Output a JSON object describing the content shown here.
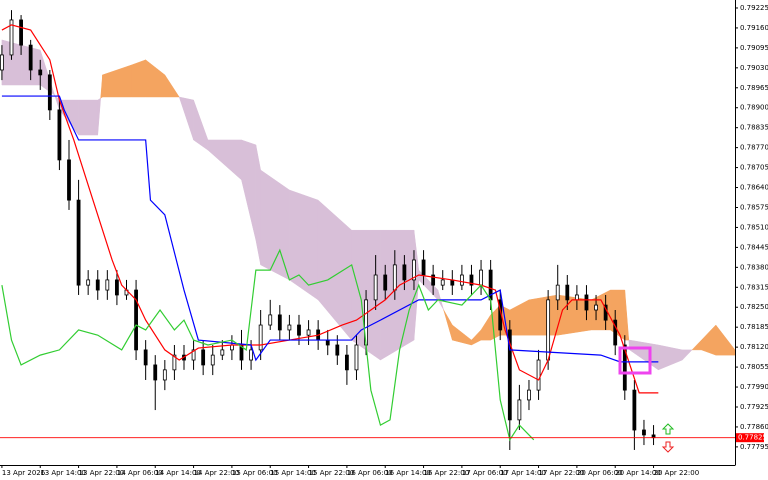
{
  "chart_data": {
    "type": "candlestick",
    "xlim": [
      -0.4,
      153
    ],
    "ylim": [
      0.77736,
      0.79251
    ],
    "yticks": [
      0.79225,
      {
        "value": 0.7916,
        "label": "0.79160"
      },
      0.79095,
      {
        "value": 0.7903,
        "label": "0.79030"
      },
      0.78965,
      {
        "value": 0.789,
        "label": "0.78900"
      },
      0.78835,
      {
        "value": 0.7877,
        "label": "0.78770"
      },
      0.78705,
      {
        "value": 0.7864,
        "label": "0.78640"
      },
      0.78575,
      {
        "value": 0.7851,
        "label": "0.78510"
      },
      0.78445,
      {
        "value": 0.7838,
        "label": "0.78380"
      },
      0.78315,
      {
        "value": 0.7825,
        "label": "0.78250"
      },
      0.78185,
      {
        "value": 0.7812,
        "label": "0.78120"
      },
      0.78055,
      {
        "value": 0.7799,
        "label": "0.77990"
      },
      0.77925,
      {
        "value": 0.7786,
        "label": "0.77860"
      },
      0.77795
    ],
    "xticks": [
      {
        "value": 0,
        "label": "13 Apr 2026"
      },
      {
        "value": 8,
        "label": "13 Apr 14:00"
      },
      {
        "value": 16,
        "label": "13 Apr 22:00"
      },
      {
        "value": 24,
        "label": "14 Apr 06:00"
      },
      {
        "value": 32,
        "label": "14 Apr 14:00"
      },
      {
        "value": 40,
        "label": "14 Apr 22:00"
      },
      {
        "value": 48,
        "label": "15 Apr 06:00"
      },
      {
        "value": 56,
        "label": "15 Apr 14:00"
      },
      {
        "value": 64,
        "label": "15 Apr 22:00"
      },
      {
        "value": 72,
        "label": "16 Apr 06:00"
      },
      {
        "value": 80,
        "label": "16 Apr 14:00"
      },
      {
        "value": 88,
        "label": "16 Apr 22:00"
      },
      {
        "value": 96,
        "label": "17 Apr 06:00"
      },
      {
        "value": 104,
        "label": "17 Apr 14:00"
      },
      {
        "value": 112,
        "label": "17 Apr 22:00"
      },
      {
        "value": 120,
        "label": "20 Apr 06:00"
      },
      {
        "value": 128,
        "label": "20 Apr 14:00"
      },
      {
        "value": 136,
        "label": "20 Apr 22:00"
      }
    ],
    "bull_color": "#ffffff",
    "bear_color": "#000000",
    "x": [
      0,
      2,
      4,
      6,
      8,
      10,
      12,
      14,
      16,
      18,
      20,
      22,
      24,
      26,
      28,
      30,
      32,
      34,
      36,
      38,
      40,
      42,
      44,
      46,
      48,
      50,
      52,
      54,
      56,
      58,
      60,
      62,
      64,
      66,
      68,
      70,
      72,
      74,
      76,
      78,
      80,
      82,
      84,
      86,
      88,
      90,
      92,
      94,
      96,
      98,
      100,
      102,
      104,
      106,
      108,
      110,
      112,
      114,
      116,
      118,
      120,
      122,
      124,
      126,
      128,
      130,
      132,
      134,
      136
    ],
    "open": [
      0.79023,
      0.79072,
      0.79186,
      0.79104,
      0.79023,
      0.79007,
      0.78893,
      0.7873,
      0.78599,
      0.78322,
      0.78339,
      0.78306,
      0.78339,
      0.7829,
      0.78306,
      0.78111,
      0.78062,
      0.78013,
      0.78046,
      0.78094,
      0.78078,
      0.78111,
      0.78062,
      0.78094,
      0.78111,
      0.78127,
      0.78078,
      0.78111,
      0.78192,
      0.78225,
      0.78176,
      0.78192,
      0.78159,
      0.78176,
      0.78143,
      0.78127,
      0.78094,
      0.78046,
      0.78127,
      0.78274,
      0.78355,
      0.78306,
      0.78388,
      0.78339,
      0.78404,
      0.78355,
      0.78322,
      0.78339,
      0.78322,
      0.78355,
      0.78322,
      0.78371,
      0.78274,
      0.78176,
      0.77883,
      0.77948,
      0.7798,
      0.78078,
      0.78274,
      0.78322,
      0.78274,
      0.7829,
      0.78241,
      0.78257,
      0.78208,
      0.78127,
      0.7798,
      0.7785,
      0.77834
    ],
    "high": [
      0.79104,
      0.79218,
      0.79202,
      0.79121,
      0.79056,
      0.79023,
      0.78925,
      0.78795,
      0.78665,
      0.78371,
      0.78371,
      0.78371,
      0.78371,
      0.78339,
      0.78339,
      0.78143,
      0.78094,
      0.78078,
      0.78127,
      0.78127,
      0.78143,
      0.78143,
      0.78127,
      0.78143,
      0.78159,
      0.78176,
      0.78143,
      0.78241,
      0.78274,
      0.78257,
      0.78225,
      0.78225,
      0.78208,
      0.78208,
      0.78176,
      0.78159,
      0.78127,
      0.78159,
      0.78306,
      0.7842,
      0.78388,
      0.78436,
      0.7842,
      0.78436,
      0.78436,
      0.78388,
      0.78371,
      0.78371,
      0.78388,
      0.78388,
      0.78404,
      0.78404,
      0.78306,
      0.78208,
      0.77997,
      0.78013,
      0.78111,
      0.78306,
      0.78388,
      0.78355,
      0.78322,
      0.78322,
      0.7829,
      0.7829,
      0.78241,
      0.78159,
      0.78013,
      0.77883,
      0.77866
    ],
    "low": [
      0.7899,
      0.79056,
      0.79072,
      0.7899,
      0.78958,
      0.7886,
      0.78697,
      0.78567,
      0.7829,
      0.7829,
      0.78274,
      0.78274,
      0.78257,
      0.78274,
      0.78078,
      0.78013,
      0.77915,
      0.7798,
      0.78013,
      0.78046,
      0.78046,
      0.78029,
      0.78029,
      0.78078,
      0.78078,
      0.78046,
      0.78046,
      0.78078,
      0.78176,
      0.78143,
      0.78143,
      0.78127,
      0.78127,
      0.78111,
      0.78094,
      0.78062,
      0.77997,
      0.78013,
      0.78094,
      0.78241,
      0.78274,
      0.78274,
      0.78306,
      0.78306,
      0.78322,
      0.7829,
      0.78306,
      0.7829,
      0.78306,
      0.7829,
      0.7829,
      0.78241,
      0.78143,
      0.77785,
      0.7785,
      0.77915,
      0.77948,
      0.78046,
      0.78241,
      0.78241,
      0.78241,
      0.78208,
      0.78208,
      0.78176,
      0.78094,
      0.77948,
      0.77785,
      0.77801,
      0.77801
    ],
    "close": [
      0.79072,
      0.79186,
      0.79104,
      0.79023,
      0.79007,
      0.78893,
      0.7873,
      0.78599,
      0.78322,
      0.78339,
      0.78306,
      0.78339,
      0.7829,
      0.78306,
      0.78111,
      0.78062,
      0.78013,
      0.78046,
      0.78094,
      0.78078,
      0.78111,
      0.78062,
      0.78094,
      0.78111,
      0.78127,
      0.78078,
      0.78111,
      0.78192,
      0.78225,
      0.78176,
      0.78192,
      0.78159,
      0.78176,
      0.78143,
      0.78127,
      0.78094,
      0.78046,
      0.78127,
      0.78274,
      0.78355,
      0.78306,
      0.78388,
      0.78339,
      0.78404,
      0.78355,
      0.78322,
      0.78339,
      0.78322,
      0.78355,
      0.78322,
      0.78371,
      0.78274,
      0.78176,
      0.77883,
      0.77948,
      0.7798,
      0.78078,
      0.78274,
      0.78322,
      0.78274,
      0.7829,
      0.78241,
      0.78257,
      0.78208,
      0.78127,
      0.7798,
      0.7785,
      0.77834,
      0.77825
    ],
    "lines": [
      {
        "color": "#ff0000",
        "x": [
          0,
          2,
          6,
          10,
          12,
          15,
          19,
          23,
          25,
          28,
          30,
          34,
          37,
          41,
          48,
          54,
          60,
          66,
          71,
          74,
          77,
          80,
          83,
          87,
          94,
          100,
          103,
          105,
          108,
          112,
          114,
          117,
          119,
          125,
          129,
          133,
          137
        ],
        "values": [
          0.79153,
          0.7917,
          0.79153,
          0.79056,
          0.78925,
          0.78795,
          0.78599,
          0.78404,
          0.78322,
          0.78274,
          0.78208,
          0.78111,
          0.78078,
          0.78117,
          0.78127,
          0.78127,
          0.78143,
          0.78159,
          0.78192,
          0.78208,
          0.78241,
          0.78274,
          0.78322,
          0.78355,
          0.78339,
          0.78322,
          0.78306,
          0.78176,
          0.78046,
          0.78013,
          0.78078,
          0.78241,
          0.78274,
          0.78274,
          0.78159,
          0.77971,
          0.77971
        ]
      },
      {
        "color": "#0000ff",
        "x": [
          0,
          12,
          13,
          16,
          30,
          31,
          34,
          38,
          41,
          52,
          53,
          56,
          73,
          75,
          79,
          87,
          100,
          104,
          106,
          125,
          129,
          137
        ],
        "values": [
          0.78938,
          0.78938,
          0.78893,
          0.78795,
          0.78795,
          0.78599,
          0.78551,
          0.78306,
          0.78143,
          0.78127,
          0.78078,
          0.78143,
          0.78143,
          0.78176,
          0.78208,
          0.78274,
          0.78274,
          0.78306,
          0.78111,
          0.78094,
          0.78072,
          0.78072
        ]
      },
      {
        "color": "#32cd32",
        "x": [
          0,
          2,
          4,
          8,
          12,
          16,
          20,
          25,
          28,
          30,
          33,
          36,
          38,
          40,
          43,
          48,
          51,
          53,
          56,
          58,
          60,
          62,
          64,
          68,
          73,
          75,
          77,
          79,
          81,
          83,
          85,
          87,
          89,
          91,
          96,
          100,
          102,
          104,
          106,
          108,
          110,
          111
        ],
        "values": [
          0.78322,
          0.78143,
          0.78062,
          0.78094,
          0.78111,
          0.78176,
          0.78159,
          0.78111,
          0.78192,
          0.78176,
          0.78241,
          0.78176,
          0.78208,
          0.78143,
          0.78127,
          0.78143,
          0.78111,
          0.78371,
          0.78371,
          0.78436,
          0.78339,
          0.78355,
          0.78322,
          0.78339,
          0.78388,
          0.78274,
          0.7798,
          0.77866,
          0.77883,
          0.78111,
          0.78241,
          0.78322,
          0.78241,
          0.78274,
          0.78257,
          0.78322,
          0.78274,
          0.77948,
          0.77818,
          0.77866,
          0.77834,
          0.77818
        ]
      }
    ],
    "cloud": {
      "bull_color": "#f4a460",
      "bear_color": "#d8bfd8",
      "x": [
        0,
        4,
        8,
        11,
        12,
        16,
        20,
        21,
        27,
        30,
        34,
        37,
        40,
        43,
        50,
        53,
        54,
        60,
        66,
        73,
        79,
        86,
        87,
        91,
        94,
        98,
        100,
        102,
        104,
        106,
        110,
        116,
        123,
        127,
        130,
        131,
        137,
        142,
        146,
        149,
        153
      ],
      "span_a": [
        0.78974,
        0.78974,
        0.78974,
        0.78941,
        0.78893,
        0.78811,
        0.78811,
        0.79007,
        0.79039,
        0.79056,
        0.79007,
        0.78935,
        0.78795,
        0.78762,
        0.78665,
        0.78469,
        0.78388,
        0.78339,
        0.78274,
        0.78143,
        0.78078,
        0.78143,
        0.78339,
        0.78274,
        0.78192,
        0.78143,
        0.78176,
        0.78225,
        0.78257,
        0.78241,
        0.78274,
        0.7829,
        0.78274,
        0.78306,
        0.78306,
        0.78111,
        0.78046,
        0.78078,
        0.78143,
        0.78192,
        0.78111
      ],
      "span_b": [
        0.79121,
        0.79104,
        0.79088,
        0.78941,
        0.78925,
        0.78925,
        0.78925,
        0.78935,
        0.78935,
        0.78935,
        0.78935,
        0.78935,
        0.78925,
        0.78795,
        0.78795,
        0.78779,
        0.78697,
        0.78632,
        0.78599,
        0.78501,
        0.78501,
        0.78501,
        0.78371,
        0.78306,
        0.78143,
        0.78127,
        0.78143,
        0.78143,
        0.78159,
        0.78159,
        0.78159,
        0.78159,
        0.78176,
        0.78176,
        0.78143,
        0.78143,
        0.78127,
        0.78111,
        0.78111,
        0.78094,
        0.78094
      ]
    },
    "bid": {
      "value": 0.77825,
      "color": "#ff0000"
    }
  }
}
